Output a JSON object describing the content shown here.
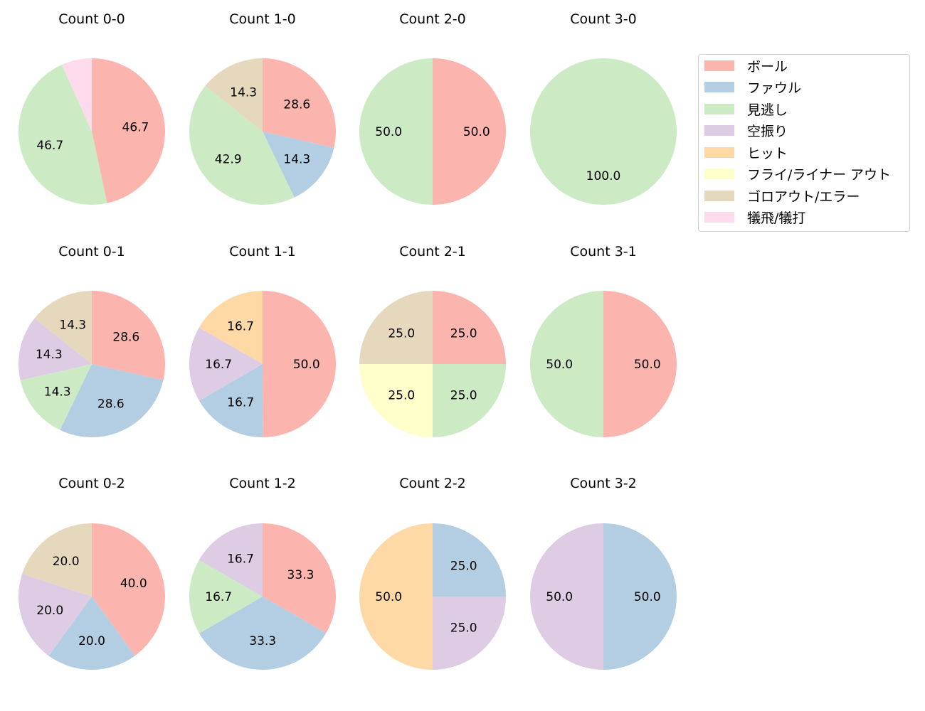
{
  "chart_data": {
    "type": "pie",
    "categories": [
      "ボール",
      "ファウル",
      "見逃し",
      "空振り",
      "ヒット",
      "フライ/ライナー アウト",
      "ゴロアウト/エラー",
      "犠飛/犠打"
    ],
    "colors": [
      "#fbb4ae",
      "#b3cde3",
      "#ccebc5",
      "#decbe4",
      "#fed9a6",
      "#ffffcc",
      "#e5d8bd",
      "#fddaec"
    ],
    "legend_position": "right",
    "label_format": "%.1f",
    "pies": [
      {
        "title": "Count 0-0",
        "values": [
          46.7,
          0,
          46.7,
          0,
          0,
          0,
          0,
          6.7
        ],
        "labels": [
          "46.7",
          "",
          "46.7",
          "",
          "",
          "",
          "",
          ""
        ]
      },
      {
        "title": "Count 1-0",
        "values": [
          28.6,
          14.3,
          42.9,
          0,
          0,
          0,
          14.3,
          0
        ],
        "labels": [
          "28.6",
          "14.3",
          "42.9",
          "",
          "",
          "",
          "14.3",
          ""
        ]
      },
      {
        "title": "Count 2-0",
        "values": [
          50.0,
          0,
          50.0,
          0,
          0,
          0,
          0,
          0
        ],
        "labels": [
          "50.0",
          "",
          "50.0",
          "",
          "",
          "",
          "",
          ""
        ]
      },
      {
        "title": "Count 3-0",
        "values": [
          0,
          0,
          100.0,
          0,
          0,
          0,
          0,
          0
        ],
        "labels": [
          "",
          "",
          "100.0",
          "",
          "",
          "",
          "",
          ""
        ]
      },
      {
        "title": "Count 0-1",
        "values": [
          28.6,
          28.6,
          14.3,
          14.3,
          0,
          0,
          14.3,
          0
        ],
        "labels": [
          "28.6",
          "28.6",
          "14.3",
          "14.3",
          "",
          "",
          "14.3",
          ""
        ]
      },
      {
        "title": "Count 1-1",
        "values": [
          50.0,
          16.7,
          0,
          16.7,
          16.7,
          0,
          0,
          0
        ],
        "labels": [
          "50.0",
          "16.7",
          "",
          "16.7",
          "16.7",
          "",
          "",
          ""
        ]
      },
      {
        "title": "Count 2-1",
        "values": [
          25.0,
          0,
          25.0,
          0,
          0,
          25.0,
          25.0,
          0
        ],
        "labels": [
          "25.0",
          "",
          "25.0",
          "",
          "",
          "25.0",
          "25.0",
          ""
        ]
      },
      {
        "title": "Count 3-1",
        "values": [
          50.0,
          0,
          50.0,
          0,
          0,
          0,
          0,
          0
        ],
        "labels": [
          "50.0",
          "",
          "50.0",
          "",
          "",
          "",
          "",
          ""
        ]
      },
      {
        "title": "Count 0-2",
        "values": [
          40.0,
          20.0,
          0,
          20.0,
          0,
          0,
          20.0,
          0
        ],
        "labels": [
          "40.0",
          "20.0",
          "",
          "20.0",
          "",
          "",
          "20.0",
          ""
        ]
      },
      {
        "title": "Count 1-2",
        "values": [
          33.3,
          33.3,
          16.7,
          16.7,
          0,
          0,
          0,
          0
        ],
        "labels": [
          "33.3",
          "33.3",
          "16.7",
          "16.7",
          "",
          "",
          "",
          ""
        ]
      },
      {
        "title": "Count 2-2",
        "values": [
          0,
          25.0,
          0,
          25.0,
          50.0,
          0,
          0,
          0
        ],
        "labels": [
          "",
          "25.0",
          "",
          "25.0",
          "50.0",
          "",
          "",
          ""
        ]
      },
      {
        "title": "Count 3-2",
        "values": [
          0,
          50.0,
          0,
          50.0,
          0,
          0,
          0,
          0
        ],
        "labels": [
          "",
          "50.0",
          "",
          "50.0",
          "",
          "",
          "",
          ""
        ]
      }
    ]
  },
  "titles": [
    "Count 0-0",
    "Count 1-0",
    "Count 2-0",
    "Count 3-0",
    "Count 0-1",
    "Count 1-1",
    "Count 2-1",
    "Count 3-1",
    "Count 0-2",
    "Count 1-2",
    "Count 2-2",
    "Count 3-2"
  ],
  "legend": {
    "items": [
      {
        "label": "ボール",
        "color": "#fbb4ae"
      },
      {
        "label": "ファウル",
        "color": "#b3cde3"
      },
      {
        "label": "見逃し",
        "color": "#ccebc5"
      },
      {
        "label": "空振り",
        "color": "#decbe4"
      },
      {
        "label": "ヒット",
        "color": "#fed9a6"
      },
      {
        "label": "フライ/ライナー アウト",
        "color": "#ffffcc"
      },
      {
        "label": "ゴロアウト/エラー",
        "color": "#e5d8bd"
      },
      {
        "label": "犠飛/犠打",
        "color": "#fddaec"
      }
    ]
  }
}
